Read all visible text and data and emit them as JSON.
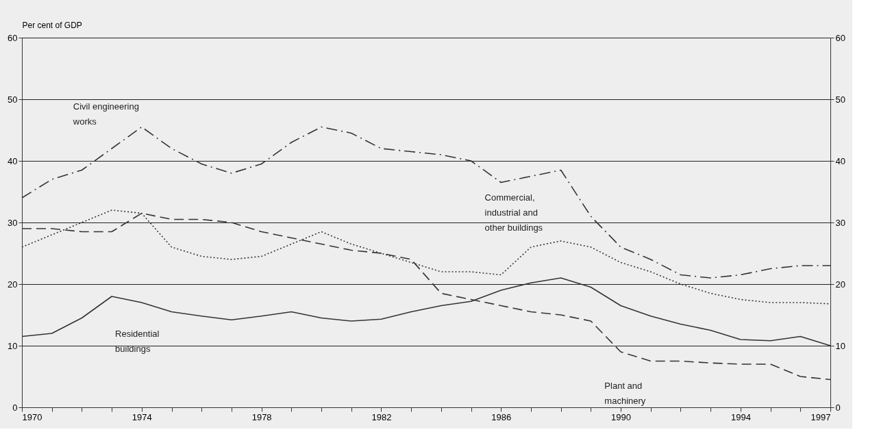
{
  "chart_data": {
    "type": "line",
    "ylabel": "Per cent of GDP",
    "x": [
      1970,
      1971,
      1972,
      1973,
      1974,
      1975,
      1976,
      1977,
      1978,
      1979,
      1980,
      1981,
      1982,
      1983,
      1984,
      1985,
      1986,
      1987,
      1988,
      1989,
      1990,
      1991,
      1992,
      1993,
      1994,
      1995,
      1996,
      1997
    ],
    "series": [
      {
        "name": "Civil engineering works",
        "color": "#333333",
        "line_style": "dashdot",
        "values": [
          34,
          37,
          38.5,
          42,
          45.5,
          42,
          39.5,
          38,
          39.5,
          43,
          45.5,
          44.5,
          42,
          41.5,
          41,
          40,
          36.5,
          37.5,
          38.5,
          31,
          26,
          24,
          21.5,
          21,
          21.5,
          22.5,
          23,
          23
        ]
      },
      {
        "name": "Commercial, industrial and other buildings",
        "color": "#333333",
        "line_style": "dotted",
        "values": [
          26,
          28,
          30,
          32,
          31.5,
          26,
          24.5,
          24,
          24.5,
          26.5,
          28.5,
          26.5,
          25,
          23.5,
          22,
          22,
          21.5,
          26,
          27,
          26,
          23.5,
          22,
          20,
          18.5,
          17.5,
          17,
          17,
          16.8
        ]
      },
      {
        "name": "Plant and machinery",
        "color": "#333333",
        "line_style": "dashed",
        "values": [
          29,
          29,
          28.5,
          28.5,
          31.5,
          30.5,
          30.5,
          30,
          28.5,
          27.5,
          26.5,
          25.5,
          25,
          24,
          18.5,
          17.5,
          16.5,
          15.5,
          15,
          14,
          9,
          7.5,
          7.5,
          7.2,
          7,
          7,
          5,
          4.5
        ]
      },
      {
        "name": "Residential buildings",
        "color": "#333333",
        "line_style": "solid",
        "values": [
          11.5,
          12,
          14.5,
          18,
          17,
          15.5,
          14.8,
          14.2,
          14.8,
          15.5,
          14.5,
          14,
          14.3,
          15.5,
          16.5,
          17.2,
          19,
          20.2,
          21,
          19.5,
          16.5,
          14.8,
          13.5,
          12.5,
          11,
          10.8,
          11.5,
          10
        ]
      }
    ],
    "xlim": [
      1970,
      1997
    ],
    "xticks": [
      1970,
      {
        "value": 1971,
        "label": null
      },
      {
        "value": 1972,
        "label": null
      },
      {
        "value": 1973,
        "label": null
      },
      1974,
      {
        "value": 1975,
        "label": null
      },
      {
        "value": 1976,
        "label": null
      },
      {
        "value": 1977,
        "label": null
      },
      1978,
      {
        "value": 1979,
        "label": null
      },
      {
        "value": 1980,
        "label": null
      },
      {
        "value": 1981,
        "label": null
      },
      1982,
      {
        "value": 1983,
        "label": null
      },
      {
        "value": 1984,
        "label": null
      },
      {
        "value": 1985,
        "label": null
      },
      1986,
      {
        "value": 1987,
        "label": null
      },
      {
        "value": 1988,
        "label": null
      },
      {
        "value": 1989,
        "label": null
      },
      1990,
      {
        "value": 1991,
        "label": null
      },
      {
        "value": 1992,
        "label": null
      },
      {
        "value": 1993,
        "label": null
      },
      1994,
      {
        "value": 1995,
        "label": null
      },
      {
        "value": 1996,
        "label": null
      },
      1997
    ],
    "ylim": [
      0,
      60
    ],
    "yticks": [
      0,
      10,
      20,
      30,
      40,
      50,
      60
    ],
    "y2lim": [
      0,
      60
    ],
    "y2ticks": [
      0,
      10,
      20,
      30,
      40,
      50,
      60
    ],
    "grid": "y",
    "legend": false,
    "marker": "none"
  }
}
